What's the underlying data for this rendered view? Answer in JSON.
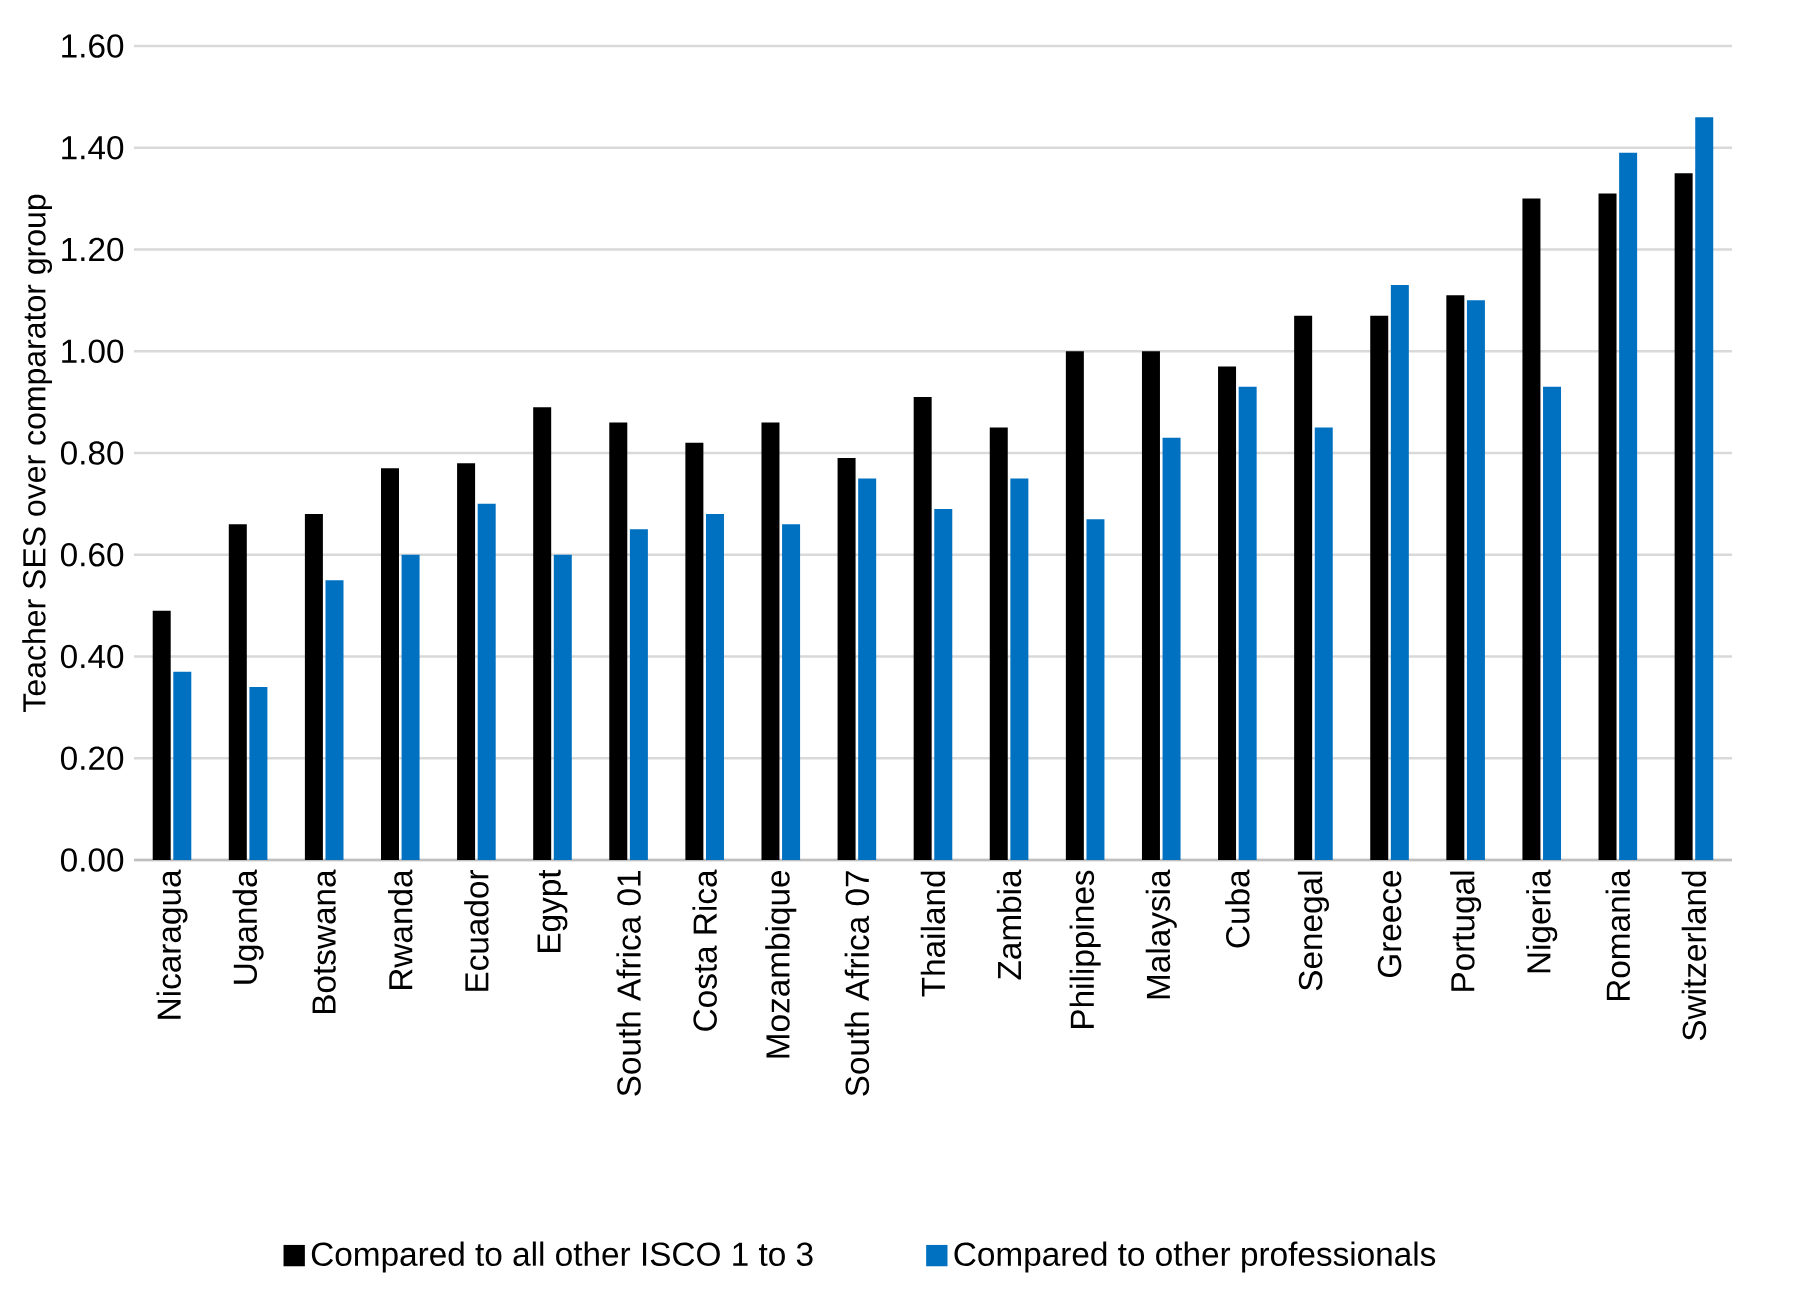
{
  "chart_data": {
    "type": "bar",
    "ylabel": "Teacher SES over comparator group",
    "categories": [
      "Nicaragua",
      "Uganda",
      "Botswana",
      "Rwanda",
      "Ecuador",
      "Egypt",
      "South Africa 01",
      "Costa Rica",
      "Mozambique",
      "South Africa 07",
      "Thailand",
      "Zambia",
      "Philippines",
      "Malaysia",
      "Cuba",
      "Senegal",
      "Greece",
      "Portugal",
      "Nigeria",
      "Romania",
      "Switzerland"
    ],
    "series": [
      {
        "name": "Compared to all other ISCO 1 to 3",
        "color": "#000000",
        "values": [
          0.49,
          0.66,
          0.68,
          0.77,
          0.78,
          0.89,
          0.86,
          0.82,
          0.86,
          0.79,
          0.91,
          0.85,
          1.0,
          1.0,
          0.97,
          1.07,
          1.07,
          1.11,
          1.3,
          1.31,
          1.35
        ]
      },
      {
        "name": "Compared to other professionals",
        "color": "#0070c0",
        "values": [
          0.37,
          0.34,
          0.55,
          0.6,
          0.7,
          0.6,
          0.65,
          0.68,
          0.66,
          0.75,
          0.69,
          0.75,
          0.67,
          0.83,
          0.93,
          0.85,
          1.13,
          1.1,
          0.93,
          1.39,
          1.46
        ]
      }
    ],
    "ylim": [
      0,
      1.6
    ],
    "yticks": [
      {
        "value": 0,
        "label": "0.00"
      },
      {
        "value": 0.2,
        "label": "0.20"
      },
      {
        "value": 0.4,
        "label": "0.40"
      },
      {
        "value": 0.6,
        "label": "0.60"
      },
      {
        "value": 0.8,
        "label": "0.80"
      },
      {
        "value": 1.0,
        "label": "1.00"
      },
      {
        "value": 1.2,
        "label": "1.20"
      },
      {
        "value": 1.4,
        "label": "1.40"
      },
      {
        "value": 1.6,
        "label": "1.60"
      }
    ],
    "grid": "y",
    "legend": "bottom"
  }
}
